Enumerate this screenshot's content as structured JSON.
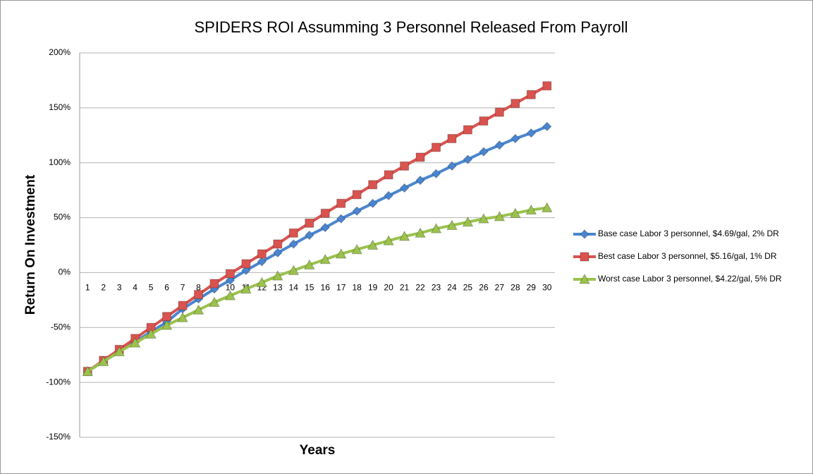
{
  "chart_data": {
    "type": "line",
    "title": "SPIDERS ROI Assumming 3 Personnel Released From Payroll",
    "x_label": "Years",
    "y_label": "Return On Investment",
    "categories": [
      1,
      2,
      3,
      4,
      5,
      6,
      7,
      8,
      9,
      10,
      11,
      12,
      13,
      14,
      15,
      16,
      17,
      18,
      19,
      20,
      21,
      22,
      23,
      24,
      25,
      26,
      27,
      28,
      29,
      30
    ],
    "ylim": [
      -150,
      200
    ],
    "yticks": [
      {
        "value": -150,
        "label": "-150%"
      },
      {
        "value": -100,
        "label": "-100%"
      },
      {
        "value": -50,
        "label": "-50%"
      },
      {
        "value": 0,
        "label": "0%"
      },
      {
        "value": 50,
        "label": "50%"
      },
      {
        "value": 100,
        "label": "100%"
      },
      {
        "value": 150,
        "label": "150%"
      },
      {
        "value": 200,
        "label": "200%"
      }
    ],
    "grid": true,
    "legend": "right",
    "series": [
      {
        "name": "Base case Labor 3 personnel, $4.69/gal, 2% DR",
        "color": "#4a86d0",
        "marker": "diamond",
        "values": [
          -90,
          -81,
          -72,
          -63,
          -54,
          -45,
          -33,
          -24,
          -15,
          -7,
          2,
          10,
          18,
          26,
          34,
          41,
          49,
          56,
          63,
          70,
          77,
          84,
          90,
          97,
          103,
          110,
          116,
          122,
          127,
          133
        ]
      },
      {
        "name": "Best case Labor 3 personnel, $5.16/gal, 1% DR",
        "color": "#d9534f",
        "marker": "square",
        "values": [
          -90,
          -80,
          -70,
          -60,
          -50,
          -40,
          -30,
          -20,
          -10,
          -1,
          8,
          17,
          26,
          36,
          45,
          54,
          63,
          71,
          80,
          89,
          97,
          105,
          114,
          122,
          130,
          138,
          146,
          154,
          162,
          170
        ]
      },
      {
        "name": "Worst case Labor 3 personnel, $4.22/gal, 5% DR",
        "color": "#9bc24e",
        "marker": "triangle",
        "values": [
          -90,
          -81,
          -72,
          -64,
          -56,
          -48,
          -41,
          -34,
          -27,
          -21,
          -15,
          -9,
          -3,
          2,
          7,
          12,
          17,
          21,
          25,
          29,
          33,
          36,
          40,
          43,
          46,
          49,
          51,
          54,
          57,
          59
        ]
      }
    ]
  }
}
